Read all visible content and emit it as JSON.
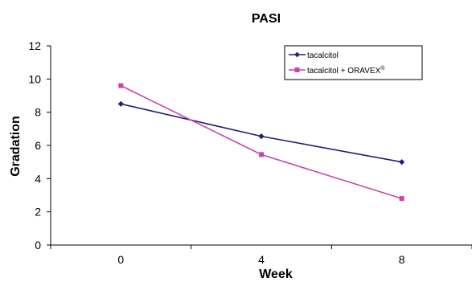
{
  "chart_data": {
    "type": "line",
    "title": "PASI",
    "xlabel": "Week",
    "ylabel": "Gradation",
    "x": [
      0,
      4,
      8
    ],
    "xlim": [
      -2,
      10
    ],
    "ylim": [
      0,
      12
    ],
    "yticks": [
      0,
      2,
      4,
      6,
      8,
      10,
      12
    ],
    "xticks": [
      0,
      4,
      8
    ],
    "grid": false,
    "legend_position": "top-right",
    "series": [
      {
        "name": "tacalcitol",
        "marker": "diamond",
        "color": "#1f1f7a",
        "values": [
          8.5,
          6.55,
          5.0
        ]
      },
      {
        "name": "tacalcitol + ORAVEX",
        "name_sup": "®",
        "marker": "square",
        "color": "#cc44aa",
        "values": [
          9.6,
          5.45,
          2.8
        ]
      }
    ]
  }
}
